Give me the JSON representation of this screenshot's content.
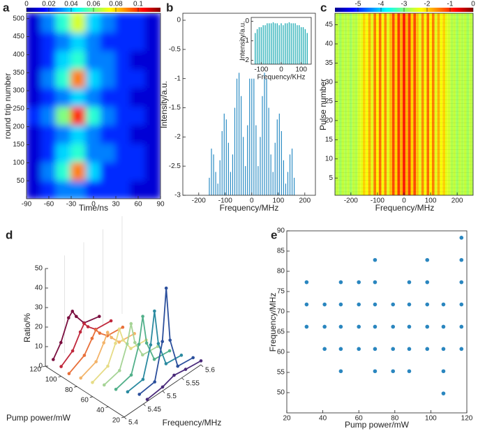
{
  "chart_data": [
    {
      "type": "heatmap",
      "panel": "a",
      "xlabel": "Time/ns",
      "ylabel": "round trip number",
      "xlim": [
        -90,
        90
      ],
      "xticks": [
        -90,
        -60,
        -30,
        0,
        30,
        60,
        90
      ],
      "ylim": [
        0,
        515
      ],
      "yticks": [
        50,
        100,
        150,
        200,
        250,
        300,
        350,
        400,
        450,
        500
      ],
      "clim": [
        0,
        0.12
      ],
      "cticks": [
        0,
        0.02,
        0.04,
        0.06,
        0.08,
        0.1
      ],
      "colormap": "jet",
      "z": [
        [
          0.01,
          0.02,
          0.03,
          0.03,
          0.02,
          0.02,
          0.02,
          0.01,
          0.01
        ],
        [
          0.01,
          0.03,
          0.05,
          0.09,
          0.04,
          0.02,
          0.02,
          0.02,
          0.01
        ],
        [
          0.01,
          0.02,
          0.04,
          0.05,
          0.03,
          0.03,
          0.02,
          0.02,
          0.01
        ],
        [
          0.01,
          0.02,
          0.03,
          0.04,
          0.03,
          0.02,
          0.02,
          0.01,
          0.01
        ],
        [
          0.02,
          0.03,
          0.06,
          0.1,
          0.05,
          0.03,
          0.02,
          0.02,
          0.01
        ],
        [
          0.01,
          0.02,
          0.03,
          0.04,
          0.03,
          0.02,
          0.02,
          0.01,
          0.01
        ],
        [
          0.01,
          0.03,
          0.05,
          0.09,
          0.04,
          0.03,
          0.02,
          0.02,
          0.01
        ],
        [
          0.01,
          0.02,
          0.04,
          0.05,
          0.03,
          0.03,
          0.02,
          0.01,
          0.01
        ],
        [
          0.01,
          0.02,
          0.03,
          0.04,
          0.03,
          0.02,
          0.02,
          0.02,
          0.01
        ],
        [
          0.01,
          0.03,
          0.05,
          0.07,
          0.04,
          0.03,
          0.02,
          0.02,
          0.01
        ]
      ]
    },
    {
      "type": "stem",
      "panel": "b",
      "xlabel": "Frequency/MHz",
      "ylabel": "Intensity/a.u.",
      "xlim": [
        -260,
        240
      ],
      "xticks": [
        -200,
        -100,
        0,
        100,
        200
      ],
      "ylim": [
        -3,
        0.12
      ],
      "yticks": [
        -3,
        -2.5,
        -2,
        -1.5,
        -1,
        -0.5,
        0
      ],
      "color": "#2b8cc4",
      "x": [
        -160,
        -152,
        -144,
        -136,
        -128,
        -120,
        -112,
        -104,
        -96,
        -88,
        -80,
        -72,
        -64,
        -56,
        -48,
        -40,
        -32,
        -24,
        -16,
        -8,
        0,
        8,
        16,
        24,
        32,
        40,
        48,
        56,
        64,
        72,
        80,
        88,
        96,
        104,
        112,
        120,
        128,
        136,
        144,
        152,
        160
      ],
      "values": [
        -2.7,
        -2.2,
        -2.3,
        -2.6,
        -2.8,
        -2.4,
        -1.9,
        -1.6,
        -1.7,
        -2.1,
        -2.6,
        -2.3,
        -1.5,
        -1.0,
        -0.9,
        -1.3,
        -2.0,
        -2.5,
        -1.8,
        -1.0,
        -1.0,
        -1.0,
        -1.8,
        -2.5,
        -2.0,
        -1.3,
        -0.9,
        -1.0,
        -1.5,
        -2.3,
        -2.6,
        -2.1,
        -1.7,
        -1.6,
        -1.9,
        -2.4,
        -2.8,
        -2.6,
        -2.3,
        -2.2,
        -2.7
      ],
      "inset": {
        "xlabel": "Frequency/KHz",
        "ylabel": "Intensity/a.u.",
        "xlim": [
          -150,
          150
        ],
        "xticks": [
          -100,
          0,
          100
        ],
        "ylim": [
          -2.2,
          0.2
        ],
        "yticks": [
          -2,
          -1,
          0
        ],
        "color": "#2ab0b8",
        "x": [
          -130,
          -120,
          -110,
          -100,
          -90,
          -80,
          -70,
          -60,
          -50,
          -40,
          -30,
          -20,
          -10,
          0,
          10,
          20,
          30,
          40,
          50,
          60,
          70,
          80,
          90,
          100,
          110,
          120,
          130
        ],
        "values": [
          -0.6,
          -0.4,
          -0.3,
          -0.3,
          -0.2,
          -0.2,
          -0.1,
          -0.1,
          -0.1,
          -0.05,
          -0.1,
          -0.1,
          -0.2,
          -0.1,
          -0.2,
          -0.1,
          -0.1,
          -0.05,
          -0.1,
          -0.1,
          -0.1,
          -0.2,
          -0.2,
          -0.3,
          -0.3,
          -0.4,
          -0.6
        ]
      }
    },
    {
      "type": "column-heatmap",
      "panel": "c",
      "xlabel": "Frequency/MHz",
      "ylabel": "Pulse number",
      "xlim": [
        -260,
        260
      ],
      "xticks": [
        -200,
        -100,
        0,
        100,
        200
      ],
      "ylim": [
        0.5,
        48
      ],
      "yticks": [
        5,
        10,
        15,
        20,
        25,
        30,
        35,
        40,
        45
      ],
      "clim": [
        -6,
        0
      ],
      "cticks": [
        -5,
        -4,
        -3,
        -2,
        -1,
        0
      ],
      "colormap": "jet",
      "x": [
        -260,
        -250,
        -240,
        -230,
        -220,
        -210,
        -200,
        -190,
        -180,
        -170,
        -160,
        -150,
        -140,
        -130,
        -120,
        -110,
        -100,
        -90,
        -80,
        -70,
        -60,
        -50,
        -40,
        -30,
        -20,
        -10,
        0,
        10,
        20,
        30,
        40,
        50,
        60,
        70,
        80,
        90,
        100,
        110,
        120,
        130,
        140,
        150,
        160,
        170,
        180,
        190,
        200,
        210,
        220,
        230,
        240,
        250,
        260
      ],
      "values": [
        -2.7,
        -2.6,
        -2.8,
        -2.6,
        -2.7,
        -2.6,
        -2.8,
        -2.6,
        -2.7,
        -2.5,
        -2.4,
        -2.0,
        -2.3,
        -1.8,
        -2.4,
        -1.5,
        -2.2,
        -1.4,
        -2.3,
        -1.6,
        -2.4,
        -1.9,
        -1.2,
        -2.0,
        -1.1,
        -1.8,
        -0.9,
        -1.8,
        -1.1,
        -2.0,
        -1.2,
        -1.9,
        -2.4,
        -1.6,
        -2.3,
        -1.4,
        -2.2,
        -1.5,
        -2.4,
        -1.8,
        -2.3,
        -2.0,
        -2.4,
        -2.5,
        -2.7,
        -2.6,
        -2.8,
        -2.6,
        -2.7,
        -2.6,
        -2.8,
        -2.6,
        -2.7
      ]
    },
    {
      "type": "line3d",
      "panel": "d",
      "xlabel": "Frequency/MHz",
      "ylabel": "Pump power/mW",
      "zlabel": "Ratio/%",
      "xlim": [
        5.4,
        5.6
      ],
      "xticks": [
        5.4,
        5.45,
        5.5,
        5.55,
        5.6
      ],
      "ylim": [
        20,
        120
      ],
      "yticks": [
        20,
        40,
        60,
        80,
        100,
        120
      ],
      "zlim": [
        0,
        50
      ],
      "zticks": [
        0,
        10,
        20,
        30,
        40,
        50
      ],
      "series": [
        {
          "color": "#7b1040",
          "pump": 110,
          "x": [
            5.4,
            5.42,
            5.44,
            5.45,
            5.46,
            5.48,
            5.52
          ],
          "values": [
            6,
            12,
            22,
            24,
            20,
            14,
            12
          ]
        },
        {
          "color": "#c0283c",
          "pump": 100,
          "x": [
            5.4,
            5.43,
            5.45,
            5.46,
            5.47,
            5.49,
            5.53
          ],
          "values": [
            5,
            9,
            16,
            19,
            16,
            12,
            11
          ]
        },
        {
          "color": "#e8703a",
          "pump": 90,
          "x": [
            5.4,
            5.44,
            5.46,
            5.47,
            5.48,
            5.5,
            5.54
          ],
          "values": [
            4,
            8,
            14,
            17,
            14,
            10,
            9
          ]
        },
        {
          "color": "#f3b46a",
          "pump": 80,
          "x": [
            5.41,
            5.45,
            5.47,
            5.48,
            5.49,
            5.51,
            5.55
          ],
          "values": [
            3,
            6,
            13,
            17,
            13,
            8,
            7
          ]
        },
        {
          "color": "#e6dc86",
          "pump": 70,
          "x": [
            5.42,
            5.46,
            5.48,
            5.49,
            5.5,
            5.52,
            5.56
          ],
          "values": [
            2,
            5,
            14,
            20,
            13,
            6,
            5
          ]
        },
        {
          "color": "#a6d496",
          "pump": 60,
          "x": [
            5.43,
            5.47,
            5.49,
            5.5,
            5.51,
            5.53,
            5.57
          ],
          "values": [
            2,
            4,
            15,
            24,
            13,
            4,
            3
          ]
        },
        {
          "color": "#52b08a",
          "pump": 50,
          "x": [
            5.44,
            5.48,
            5.5,
            5.51,
            5.52,
            5.54,
            5.58
          ],
          "values": [
            1,
            3,
            16,
            29,
            14,
            3,
            2
          ]
        },
        {
          "color": "#2a8aa0",
          "pump": 40,
          "x": [
            5.45,
            5.49,
            5.51,
            5.52,
            5.53,
            5.55,
            5.59
          ],
          "values": [
            1,
            2,
            17,
            33,
            15,
            2,
            1
          ]
        },
        {
          "color": "#2b4f9c",
          "pump": 30,
          "x": [
            5.46,
            5.5,
            5.52,
            5.53,
            5.54,
            5.56,
            5.6
          ],
          "values": [
            1,
            2,
            20,
            46,
            18,
            2,
            1
          ]
        },
        {
          "color": "#4a2a7a",
          "pump": 20,
          "x": [
            5.46,
            5.5,
            5.53,
            5.56,
            5.6
          ],
          "values": [
            1,
            2,
            4,
            3,
            2
          ]
        }
      ]
    },
    {
      "type": "scatter",
      "panel": "e",
      "xlabel": "Pump power/mW",
      "ylabel": "Frequency/MHz",
      "xlim": [
        20,
        120
      ],
      "xticks": [
        20,
        40,
        60,
        80,
        100,
        120
      ],
      "ylim": [
        45,
        90
      ],
      "yticks": [
        50,
        55,
        60,
        65,
        70,
        75,
        80,
        85,
        90
      ],
      "color": "#2a86bf",
      "x": [
        31,
        31,
        31,
        41,
        41,
        41,
        50,
        50,
        50,
        50,
        50,
        60,
        60,
        60,
        60,
        69,
        69,
        69,
        69,
        69,
        69,
        79,
        79,
        79,
        79,
        88,
        88,
        88,
        88,
        88,
        98,
        98,
        98,
        98,
        98,
        107,
        107,
        107,
        107,
        107,
        117,
        117,
        117,
        117,
        117,
        117
      ],
      "values": [
        66.3,
        71.8,
        77.3,
        60.8,
        66.3,
        71.8,
        55.3,
        60.8,
        66.3,
        71.8,
        77.3,
        60.8,
        66.3,
        71.8,
        77.3,
        55.3,
        60.8,
        66.3,
        71.8,
        77.3,
        82.8,
        55.3,
        60.8,
        66.3,
        71.8,
        55.3,
        60.8,
        66.3,
        71.8,
        77.3,
        60.8,
        66.3,
        71.8,
        77.3,
        82.8,
        49.8,
        55.3,
        60.8,
        66.3,
        71.8,
        60.8,
        66.3,
        71.8,
        77.3,
        82.8,
        88.3
      ]
    }
  ]
}
